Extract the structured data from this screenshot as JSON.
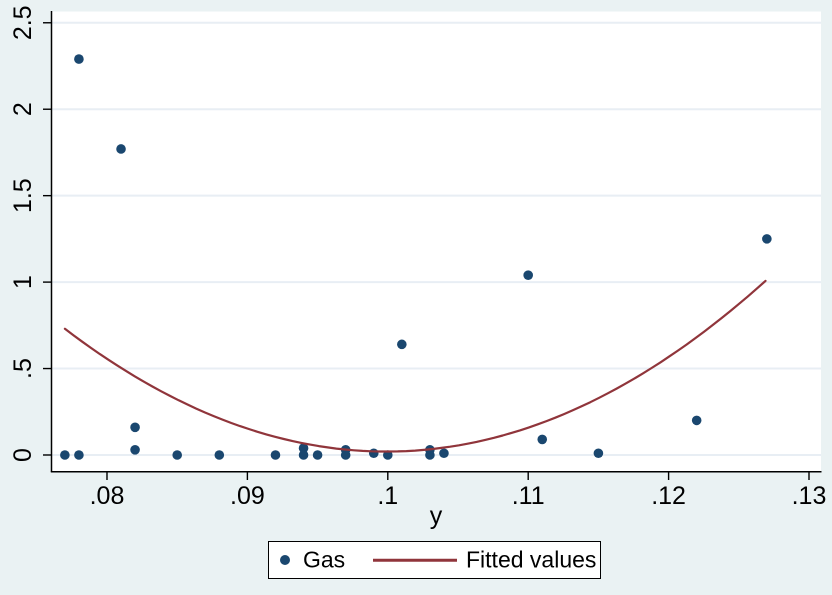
{
  "chart_data": {
    "type": "scatter",
    "title": "",
    "xlabel": "y",
    "ylabel": "",
    "xlim": [
      0.076012,
      0.130855
    ],
    "ylim": [
      -0.0926,
      2.5652
    ],
    "grid": "horizontal",
    "legend_position": "bottom-center",
    "x_ticks": {
      "values": [
        0.08,
        0.09,
        0.1,
        0.11,
        0.12,
        0.13
      ],
      "labels": [
        ".08",
        ".09",
        ".1",
        ".11",
        ".12",
        ".13"
      ]
    },
    "y_ticks": {
      "values": [
        0,
        0.5,
        1,
        1.5,
        2,
        2.5
      ],
      "labels": [
        "0",
        ".5",
        "1",
        "1.5",
        "2",
        "2.5"
      ]
    },
    "series": [
      {
        "name": "Gas",
        "type": "scatter",
        "marker": "circle",
        "color": "#1a476f",
        "points": [
          [
            0.077,
            0.0
          ],
          [
            0.078,
            0.0
          ],
          [
            0.078,
            2.29
          ],
          [
            0.081,
            1.77
          ],
          [
            0.082,
            0.16
          ],
          [
            0.082,
            0.03
          ],
          [
            0.085,
            0.0
          ],
          [
            0.088,
            0.0
          ],
          [
            0.092,
            0.0
          ],
          [
            0.094,
            0.04
          ],
          [
            0.094,
            0.0
          ],
          [
            0.095,
            0.0
          ],
          [
            0.097,
            0.03
          ],
          [
            0.097,
            0.0
          ],
          [
            0.099,
            0.01
          ],
          [
            0.1,
            0.0
          ],
          [
            0.101,
            0.64
          ],
          [
            0.103,
            0.03
          ],
          [
            0.103,
            0.0
          ],
          [
            0.104,
            0.01
          ],
          [
            0.11,
            1.04
          ],
          [
            0.111,
            0.09
          ],
          [
            0.115,
            0.01
          ],
          [
            0.122,
            0.2
          ],
          [
            0.127,
            1.25
          ]
        ]
      },
      {
        "name": "Fitted values",
        "type": "line",
        "fit": "quadratic",
        "color": "#90353b",
        "coefficients": {
          "intercept": 13.533,
          "x": -270.53,
          "x2": 1354
        },
        "x_range": [
          0.077,
          0.1269
        ],
        "endpoints": [
          [
            0.077,
            0.73
          ],
          [
            0.1269,
            1.01
          ]
        ],
        "vertex": [
          0.0999,
          0.02
        ]
      }
    ]
  },
  "colors": {
    "background": "#eaf2f3",
    "plot_background": "#ffffff",
    "gridline": "#e8eef4",
    "axis": "#000000",
    "text": "#000000",
    "scatter": "#1a476f",
    "fitted_line": "#90353b"
  }
}
